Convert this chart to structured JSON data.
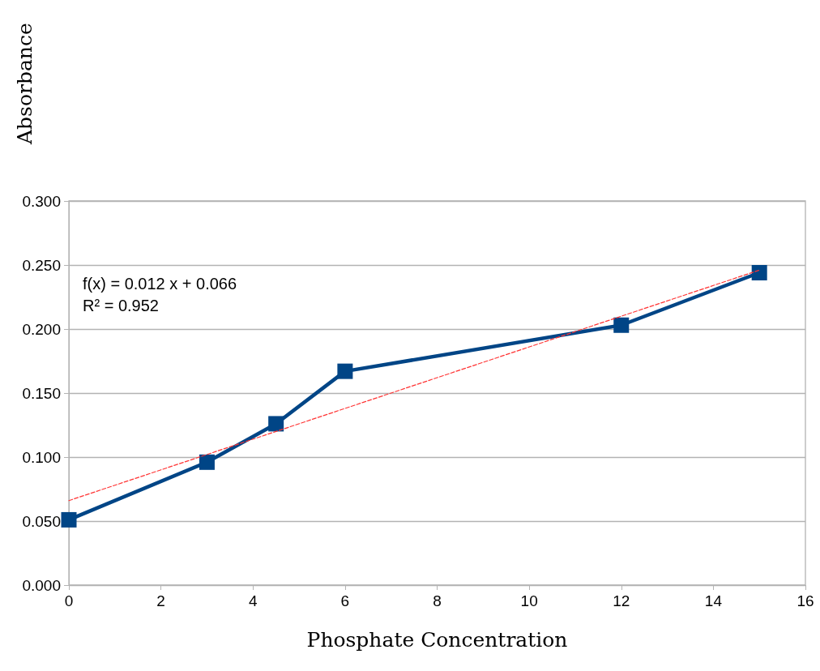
{
  "chart_data": {
    "type": "line",
    "xlabel": "Phosphate Concentration",
    "ylabel": "Absorbance",
    "x": [
      0,
      3,
      4.5,
      6,
      12,
      15
    ],
    "series": [
      {
        "color": "#004586",
        "values": [
          0.051,
          0.096,
          0.126,
          0.167,
          0.203,
          0.244
        ]
      },
      {
        "type": "line",
        "x": [
          0,
          15
        ],
        "values": [
          0.066,
          0.246
        ],
        "color": "#ff3333",
        "marker": "none",
        "line_style": "dashed"
      }
    ],
    "xlim": [
      0,
      16
    ],
    "xticks": [
      0,
      2,
      4,
      6,
      8,
      10,
      12,
      14,
      16
    ],
    "ylim": [
      0,
      0.3
    ],
    "yticks": [
      {
        "value": 0,
        "label": "0.000"
      },
      {
        "value": 0.05,
        "label": "0.050"
      },
      {
        "value": 0.1,
        "label": "0.100"
      },
      {
        "value": 0.15,
        "label": "0.150"
      },
      {
        "value": 0.2,
        "label": "0.200"
      },
      {
        "value": 0.25,
        "label": "0.250"
      },
      {
        "value": 0.3,
        "label": "0.300"
      }
    ],
    "grid": "y",
    "marker": "square",
    "line_style": "solid",
    "annotations": [
      "f(x) = 0.012 x + 0.066",
      "R² = 0.952"
    ]
  }
}
